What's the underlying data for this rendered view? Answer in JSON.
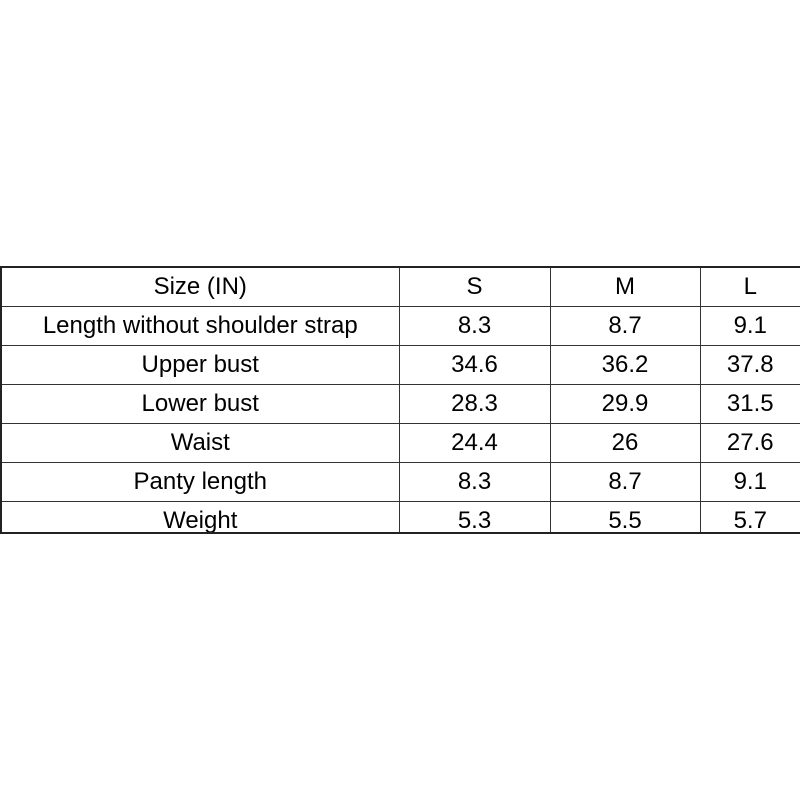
{
  "table": {
    "headers": [
      "Size (IN)",
      "S",
      "M",
      "L"
    ],
    "rows": [
      [
        "Length without shoulder strap",
        "8.3",
        "8.7",
        "9.1"
      ],
      [
        "Upper bust",
        "34.6",
        "36.2",
        "37.8"
      ],
      [
        "Lower bust",
        "28.3",
        "29.9",
        "31.5"
      ],
      [
        "Waist",
        "24.4",
        "26",
        "27.6"
      ],
      [
        "Panty length",
        "8.3",
        "8.7",
        "9.1"
      ],
      [
        "Weight",
        "5.3",
        "5.5",
        "5.7"
      ]
    ]
  }
}
